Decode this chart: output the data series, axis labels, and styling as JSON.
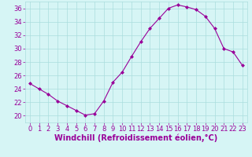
{
  "x": [
    0,
    1,
    2,
    3,
    4,
    5,
    6,
    7,
    8,
    9,
    10,
    11,
    12,
    13,
    14,
    15,
    16,
    17,
    18,
    19,
    20,
    21,
    22,
    23
  ],
  "y": [
    24.8,
    24.0,
    23.2,
    22.2,
    21.5,
    20.8,
    20.1,
    20.3,
    22.2,
    25.0,
    26.5,
    28.8,
    31.0,
    33.0,
    34.5,
    36.0,
    36.5,
    36.2,
    35.8,
    34.8,
    33.0,
    30.0,
    29.5,
    27.5
  ],
  "line_color": "#990099",
  "marker": "D",
  "marker_size": 2,
  "bg_color": "#d6f5f5",
  "grid_color": "#aadddd",
  "xlabel": "Windchill (Refroidissement éolien,°C)",
  "xlabel_color": "#990099",
  "tick_color": "#990099",
  "ylim": [
    19,
    37
  ],
  "yticks": [
    20,
    22,
    24,
    26,
    28,
    30,
    32,
    34,
    36
  ],
  "xlim": [
    -0.5,
    23.5
  ],
  "xticks": [
    0,
    1,
    2,
    3,
    4,
    5,
    6,
    7,
    8,
    9,
    10,
    11,
    12,
    13,
    14,
    15,
    16,
    17,
    18,
    19,
    20,
    21,
    22,
    23
  ],
  "font_size": 6,
  "xlabel_font_size": 7
}
